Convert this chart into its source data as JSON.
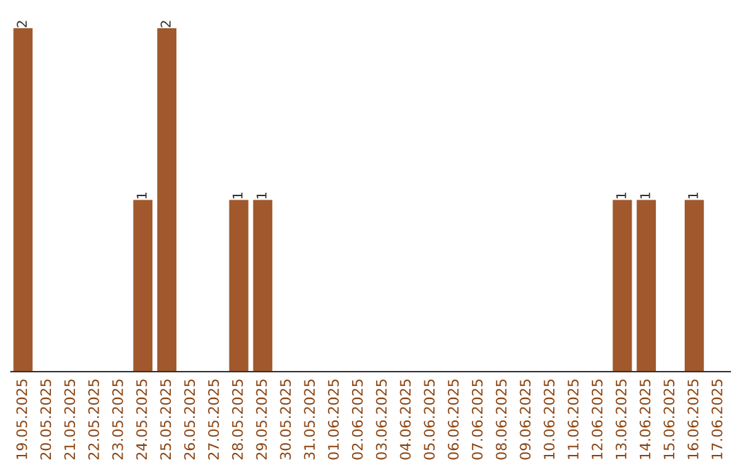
{
  "chart_data": {
    "type": "bar",
    "categories": [
      "19.05.2025",
      "20.05.2025",
      "21.05.2025",
      "22.05.2025",
      "23.05.2025",
      "24.05.2025",
      "25.05.2025",
      "26.05.2025",
      "27.05.2025",
      "28.05.2025",
      "29.05.2025",
      "30.05.2025",
      "31.05.2025",
      "01.06.2025",
      "02.06.2025",
      "03.06.2025",
      "04.06.2025",
      "05.06.2025",
      "06.06.2025",
      "07.06.2025",
      "08.06.2025",
      "09.06.2025",
      "10.06.2025",
      "11.06.2025",
      "12.06.2025",
      "13.06.2025",
      "14.06.2025",
      "15.06.2025",
      "16.06.2025",
      "17.06.2025"
    ],
    "values": [
      2,
      0,
      0,
      0,
      0,
      1,
      2,
      0,
      0,
      1,
      1,
      0,
      0,
      0,
      0,
      0,
      0,
      0,
      0,
      0,
      0,
      0,
      0,
      0,
      0,
      1,
      1,
      0,
      1,
      0
    ],
    "value_labels": [
      "2",
      null,
      null,
      null,
      null,
      "1",
      "2",
      null,
      null,
      "1",
      "1",
      null,
      null,
      null,
      null,
      null,
      null,
      null,
      null,
      null,
      null,
      null,
      null,
      null,
      null,
      "1",
      "1",
      null,
      "1",
      null
    ],
    "color": "#a0582c",
    "tick_labels": "x",
    "grid": false,
    "legend": false
  }
}
